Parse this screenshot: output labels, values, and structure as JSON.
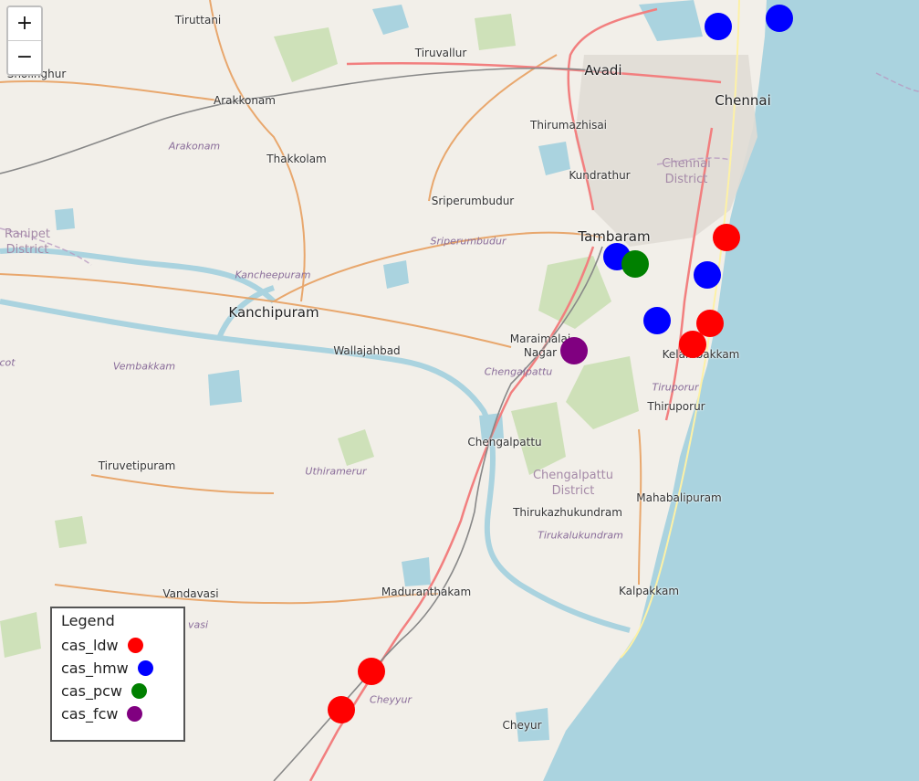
{
  "zoom_in_label": "+",
  "zoom_out_label": "−",
  "legend": {
    "title": "Legend",
    "entries": [
      {
        "label": "cas_ldw",
        "color": "#ff0000"
      },
      {
        "label": "cas_hmw",
        "color": "#0000ff"
      },
      {
        "label": "cas_pcw",
        "color": "#008000"
      },
      {
        "label": "cas_fcw",
        "color": "#800080"
      }
    ]
  },
  "places": {
    "tiruttani": "Tiruttani",
    "tiruvallur": "Tiruvallur",
    "avadi": "Avadi",
    "chennai": "Chennai",
    "sholinghur": "Sholinghur",
    "arakkonam": "Arakkonam",
    "thirumazhisai": "Thirumazhisai",
    "thakkolam": "Thakkolam",
    "kundrathur": "Kundrathur",
    "sriperumbudur": "Sriperumbudur",
    "tambaram": "Tambaram",
    "kanchipuram": "Kanchipuram",
    "maraimalai_nagar": "Maraimalai\nNagar",
    "wallajahbad": "Wallajahbad",
    "kelambakkam": "Kelambakkam",
    "thiruporur": "Thiruporur",
    "chengalpattu": "Chengalpattu",
    "tiruvetipuram": "Tiruvetipuram",
    "thirukazhukundram": "Thirukazhukundram",
    "mahabalipuram": "Mahabalipuram",
    "vandavasi": "Vandavasi",
    "maduranthakam": "Maduranthakam",
    "kalpakkam": "Kalpakkam",
    "cheyur": "Cheyur"
  },
  "districts": {
    "chennai": "Chennai\nDistrict",
    "ranipet": "Ranipet\nDistrict",
    "chengalpattu": "Chengalpattu\nDistrict"
  },
  "taluks": {
    "arakonam": "Arakonam",
    "sriperumbudur": "Sriperumbudur",
    "kancheepuram": "Kancheepuram",
    "vembakkam": "Vembakkam",
    "chengalpattu": "Chengalpattu",
    "tiruporur": "Tiruporur",
    "uthiramerur": "Uthiramerur",
    "tirukalukundram": "Tirukalukundram",
    "cheyyur": "Cheyyur",
    "vasi": "vasi",
    "cot": "cot"
  }
}
